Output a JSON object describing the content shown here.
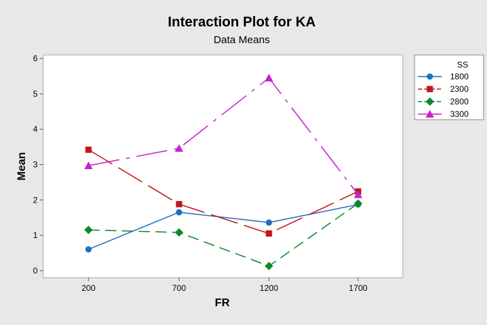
{
  "chart_data": {
    "type": "line",
    "title": "Interaction Plot for KA",
    "subtitle": "Data Means",
    "xlabel": "FR",
    "ylabel": "Mean",
    "categories": [
      "200",
      "700",
      "1200",
      "1700"
    ],
    "yticks": [
      "0",
      "1",
      "2",
      "3",
      "4",
      "5",
      "6"
    ],
    "ylim": [
      -0.2,
      6.1
    ],
    "grid": false,
    "legend": {
      "title": "SS",
      "placement": "right"
    },
    "series": [
      {
        "name": "1800",
        "values": [
          0.6,
          1.65,
          1.36,
          1.87
        ],
        "color": "#1f6fbf",
        "marker": "circle",
        "dash": "solid"
      },
      {
        "name": "2300",
        "values": [
          3.42,
          1.88,
          1.05,
          2.24
        ],
        "color": "#c0171a",
        "marker": "square",
        "dash": "long-dash"
      },
      {
        "name": "2800",
        "values": [
          1.15,
          1.08,
          0.13,
          1.9
        ],
        "color": "#0a8a2a",
        "marker": "diamond",
        "dash": "dash"
      },
      {
        "name": "3300",
        "values": [
          2.97,
          3.46,
          5.45,
          2.15
        ],
        "color": "#c81fcc",
        "marker": "triangle",
        "dash": "dash-dot"
      }
    ]
  }
}
